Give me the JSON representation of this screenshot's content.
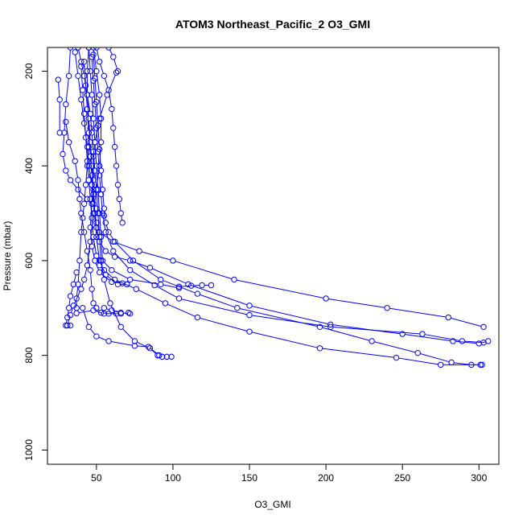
{
  "chart_data": {
    "type": "line",
    "title": "ATOM3 Northeast_Pacific_2 O3_GMI",
    "xlabel": "O3_GMI",
    "ylabel": "Pressure (mbar)",
    "xlim": [
      18,
      313
    ],
    "ylim": [
      1030,
      150
    ],
    "y_reversed": true,
    "grid": false,
    "legend": "none",
    "color": "#0000ff",
    "x_ticks": [
      50,
      100,
      150,
      200,
      250,
      300
    ],
    "y_ticks": [
      200,
      400,
      600,
      800,
      1000
    ],
    "series": [
      {
        "points": [
          [
            38,
            150
          ],
          [
            40,
            180
          ],
          [
            42,
            210
          ],
          [
            44,
            250
          ],
          [
            46,
            290
          ],
          [
            47,
            330
          ],
          [
            48,
            370
          ],
          [
            49,
            410
          ],
          [
            50,
            450
          ],
          [
            51,
            500
          ],
          [
            52,
            550
          ],
          [
            53,
            600
          ],
          [
            55,
            640
          ],
          [
            59,
            690
          ],
          [
            66,
            740
          ],
          [
            75,
            770
          ],
          [
            85,
            785
          ],
          [
            90,
            800
          ],
          [
            93,
            803
          ],
          [
            96,
            803
          ],
          [
            99,
            803
          ]
        ]
      },
      {
        "points": [
          [
            45,
            150
          ],
          [
            44,
            200
          ],
          [
            44,
            250
          ],
          [
            45,
            300
          ],
          [
            46,
            350
          ],
          [
            47,
            400
          ],
          [
            48,
            450
          ],
          [
            49,
            500
          ],
          [
            50,
            550
          ],
          [
            52,
            600
          ],
          [
            56,
            630
          ],
          [
            64,
            650
          ],
          [
            70,
            650
          ]
        ]
      },
      {
        "points": [
          [
            33,
            150
          ],
          [
            32,
            210
          ],
          [
            30,
            270
          ],
          [
            29,
            330
          ],
          [
            28,
            375
          ],
          [
            30,
            410
          ],
          [
            33,
            430
          ],
          [
            38,
            450
          ],
          [
            44,
            470
          ],
          [
            50,
            490
          ],
          [
            55,
            505
          ]
        ]
      },
      {
        "points": [
          [
            25,
            218
          ],
          [
            26,
            260
          ],
          [
            26,
            330
          ]
        ]
      },
      {
        "points": [
          [
            30,
            307
          ],
          [
            32,
            350
          ],
          [
            36,
            390
          ],
          [
            38,
            430
          ],
          [
            39,
            470
          ],
          [
            40,
            500
          ],
          [
            42,
            540
          ],
          [
            44,
            580
          ],
          [
            46,
            620
          ],
          [
            47,
            660
          ],
          [
            48,
            690
          ],
          [
            50,
            700
          ],
          [
            53,
            710
          ],
          [
            58,
            712
          ],
          [
            63,
            712
          ]
        ]
      },
      {
        "points": [
          [
            50,
            150
          ],
          [
            52,
            180
          ],
          [
            55,
            210
          ],
          [
            58,
            240
          ],
          [
            60,
            280
          ],
          [
            61,
            320
          ],
          [
            62,
            360
          ],
          [
            63,
            400
          ],
          [
            64,
            440
          ],
          [
            65,
            470
          ],
          [
            66,
            500
          ],
          [
            67,
            520
          ]
        ]
      },
      {
        "points": [
          [
            63,
            203
          ],
          [
            57,
            250
          ],
          [
            52,
            300
          ],
          [
            49,
            350
          ],
          [
            48,
            380
          ],
          [
            48,
            430
          ],
          [
            47,
            480
          ],
          [
            46,
            530
          ],
          [
            47,
            570
          ],
          [
            49,
            600
          ],
          [
            52,
            625
          ],
          [
            60,
            645
          ],
          [
            67,
            648
          ],
          [
            70,
            650
          ]
        ]
      },
      {
        "points": [
          [
            58,
            150
          ],
          [
            61,
            170
          ],
          [
            64,
            200
          ]
        ]
      },
      {
        "points": [
          [
            45,
            150
          ],
          [
            46,
            200
          ],
          [
            47,
            250
          ],
          [
            48,
            300
          ],
          [
            49,
            350
          ],
          [
            50,
            400
          ],
          [
            51,
            450
          ],
          [
            52,
            500
          ],
          [
            53,
            550
          ],
          [
            54,
            600
          ],
          [
            60,
            620
          ],
          [
            72,
            640
          ],
          [
            92,
            650
          ],
          [
            104,
            658
          ]
        ]
      },
      {
        "points": [
          [
            36,
            160
          ],
          [
            38,
            210
          ],
          [
            40,
            260
          ],
          [
            42,
            310
          ],
          [
            44,
            360
          ],
          [
            45,
            400
          ],
          [
            47,
            440
          ],
          [
            48,
            480
          ],
          [
            50,
            520
          ],
          [
            52,
            540
          ],
          [
            61,
            560
          ],
          [
            78,
            580
          ],
          [
            100,
            600
          ],
          [
            140,
            640
          ],
          [
            200,
            680
          ],
          [
            240,
            700
          ],
          [
            280,
            720
          ],
          [
            303,
            740
          ]
        ]
      },
      {
        "points": [
          [
            47,
            170
          ],
          [
            48,
            220
          ],
          [
            49,
            270
          ],
          [
            50,
            320
          ],
          [
            51,
            370
          ],
          [
            52,
            420
          ],
          [
            53,
            460
          ],
          [
            54,
            500
          ],
          [
            56,
            540
          ],
          [
            61,
            580
          ],
          [
            72,
            620
          ],
          [
            88,
            652
          ],
          [
            104,
            680
          ],
          [
            150,
            715
          ],
          [
            203,
            740
          ],
          [
            263,
            755
          ],
          [
            289,
            770
          ],
          [
            303,
            773
          ]
        ]
      },
      {
        "points": [
          [
            42,
            180
          ],
          [
            43,
            230
          ],
          [
            44,
            280
          ],
          [
            45,
            330
          ],
          [
            46,
            380
          ],
          [
            47,
            420
          ],
          [
            48,
            460
          ],
          [
            49,
            500
          ],
          [
            50,
            530
          ],
          [
            52,
            560
          ],
          [
            56,
            580
          ],
          [
            62,
            592
          ],
          [
            72,
            600
          ],
          [
            85,
            615
          ],
          [
            110,
            650
          ],
          [
            150,
            695
          ],
          [
            203,
            735
          ],
          [
            250,
            755
          ],
          [
            283,
            770
          ],
          [
            300,
            775
          ],
          [
            306,
            770
          ]
        ]
      },
      {
        "points": [
          [
            48,
            165
          ],
          [
            49,
            215
          ],
          [
            50,
            265
          ],
          [
            51,
            315
          ],
          [
            52,
            365
          ],
          [
            53,
            410
          ],
          [
            54,
            450
          ],
          [
            55,
            490
          ],
          [
            56,
            520
          ],
          [
            58,
            540
          ],
          [
            62,
            560
          ],
          [
            74,
            600
          ],
          [
            92,
            640
          ],
          [
            116,
            670
          ],
          [
            142,
            700
          ],
          [
            196,
            740
          ],
          [
            230,
            770
          ],
          [
            260,
            795
          ],
          [
            282,
            815
          ],
          [
            295,
            820
          ],
          [
            302,
            820
          ]
        ]
      },
      {
        "points": [
          [
            40,
            190
          ],
          [
            41,
            240
          ],
          [
            42,
            290
          ],
          [
            43,
            340
          ],
          [
            44,
            390
          ],
          [
            45,
            430
          ],
          [
            46,
            470
          ],
          [
            47,
            510
          ],
          [
            48,
            550
          ],
          [
            50,
            590
          ],
          [
            52,
            610
          ],
          [
            55,
            620
          ],
          [
            62,
            640
          ],
          [
            76,
            660
          ],
          [
            95,
            690
          ],
          [
            116,
            720
          ],
          [
            150,
            750
          ],
          [
            196,
            785
          ],
          [
            246,
            805
          ],
          [
            275,
            820
          ],
          [
            301,
            820
          ]
        ]
      },
      {
        "points": [
          [
            48,
            150
          ],
          [
            50,
            200
          ],
          [
            52,
            250
          ],
          [
            53,
            300
          ],
          [
            53,
            350
          ],
          [
            52,
            400
          ],
          [
            50,
            450
          ],
          [
            48,
            500
          ],
          [
            46,
            560
          ],
          [
            44,
            610
          ],
          [
            42,
            640
          ],
          [
            40,
            660
          ],
          [
            35,
            695
          ],
          [
            33,
            715
          ],
          [
            31,
            737
          ],
          [
            33,
            737
          ]
        ]
      },
      {
        "points": [
          [
            37,
            625
          ],
          [
            35,
            650
          ],
          [
            33,
            675
          ],
          [
            32,
            700
          ],
          [
            31,
            720
          ],
          [
            30,
            737
          ]
        ]
      },
      {
        "points": [
          [
            46,
            320
          ],
          [
            45,
            360
          ],
          [
            44,
            400
          ],
          [
            43,
            440
          ],
          [
            42,
            480
          ],
          [
            41,
            510
          ],
          [
            40,
            540
          ],
          [
            39,
            600
          ],
          [
            38,
            650
          ],
          [
            37,
            680
          ],
          [
            37,
            700
          ]
        ]
      },
      {
        "points": [
          [
            41,
            700
          ],
          [
            45,
            740
          ],
          [
            50,
            760
          ],
          [
            58,
            770
          ],
          [
            75,
            780
          ],
          [
            84,
            782
          ],
          [
            91,
            800
          ]
        ]
      },
      {
        "points": [
          [
            37,
            711
          ],
          [
            48,
            705
          ],
          [
            55,
            712
          ],
          [
            66,
            712
          ],
          [
            71,
            710
          ]
        ]
      },
      {
        "points": [
          [
            55,
            700
          ],
          [
            60,
            705
          ],
          [
            66,
            710
          ],
          [
            72,
            712
          ]
        ]
      },
      {
        "points": [
          [
            125,
            652
          ],
          [
            119,
            652
          ],
          [
            112,
            653
          ],
          [
            104,
            655
          ]
        ]
      }
    ]
  }
}
